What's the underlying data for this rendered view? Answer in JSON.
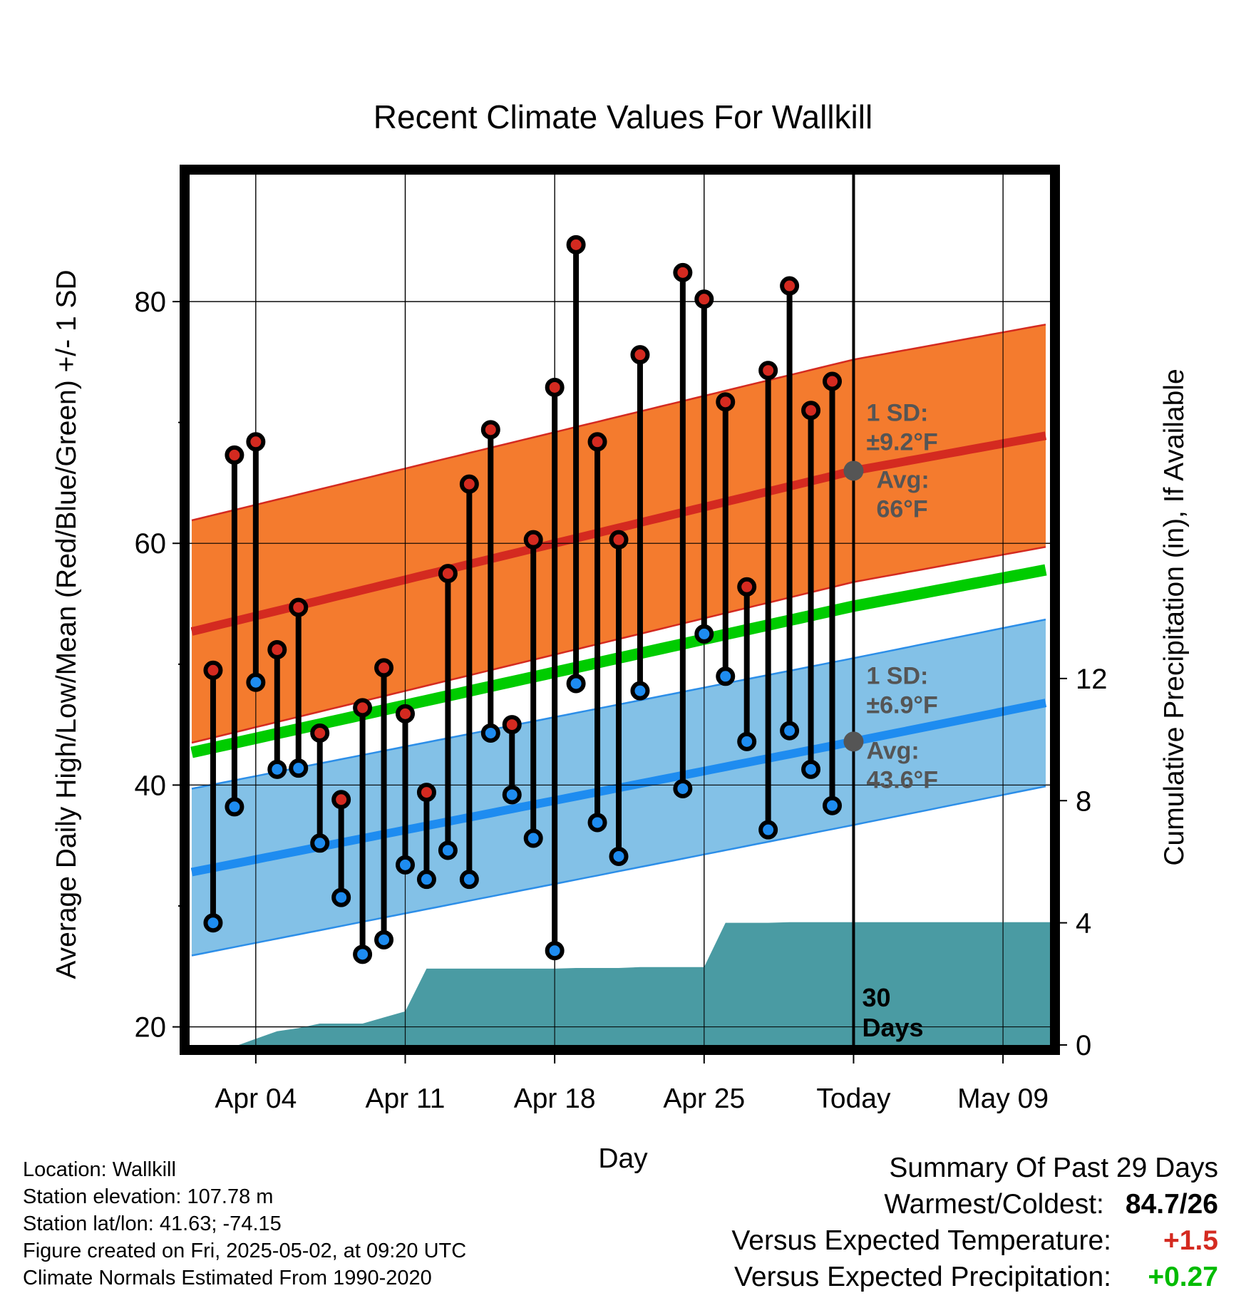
{
  "chart_data": {
    "type": "line",
    "title": "Recent Climate Values For Wallkill",
    "xlabel": "Day",
    "ylabel": "Average Daily High/Low/Mean (Red/Blue/Green) +/- 1 SD",
    "y2label": "Cumulative Precipitation (in), If Available",
    "x_tick_labels": [
      "Apr 04",
      "Apr 11",
      "Apr 18",
      "Apr 25",
      "Today",
      "May 09"
    ],
    "x_ticks_days": [
      4,
      11,
      18,
      25,
      32,
      39
    ],
    "xlim_days": [
      0.9,
      41.2
    ],
    "today_day": 32,
    "ylim": [
      18.5,
      90.5
    ],
    "y_ticks": [
      20,
      40,
      60,
      80
    ],
    "y2lim": [
      0,
      28.5
    ],
    "y2_ticks": [
      0,
      4,
      8,
      12
    ],
    "colors": {
      "high_band": "#f47b2e",
      "high_band_edge": "#d42a20",
      "high_mean": "#d42a20",
      "low_band": "#83c1e7",
      "low_band_edge": "#2c8ee8",
      "low_mean": "#1e8cf0",
      "mean": "#00cc00",
      "precip": "#4a9ba3",
      "high_dot": "#d42a20",
      "low_dot": "#1e8cf0",
      "annotation": "#555555"
    },
    "normals": {
      "days": [
        1,
        32,
        41
      ],
      "high_mean": [
        52.7,
        66.0,
        68.9
      ],
      "high_sd": 9.2,
      "low_mean": [
        32.8,
        43.6,
        46.8
      ],
      "low_sd": 6.9,
      "mean": [
        42.7,
        54.8,
        57.8
      ]
    },
    "daily": [
      {
        "day": 2,
        "high": 49.5,
        "low": 28.6
      },
      {
        "day": 3,
        "high": 67.3,
        "low": 38.2
      },
      {
        "day": 4,
        "high": 68.4,
        "low": 48.5
      },
      {
        "day": 5,
        "high": 51.2,
        "low": 41.3
      },
      {
        "day": 6,
        "high": 54.7,
        "low": 41.4
      },
      {
        "day": 7,
        "high": 44.3,
        "low": 35.2
      },
      {
        "day": 8,
        "high": 38.8,
        "low": 30.7
      },
      {
        "day": 9,
        "high": 46.4,
        "low": 26.0
      },
      {
        "day": 10,
        "high": 49.7,
        "low": 27.2
      },
      {
        "day": 11,
        "high": 45.9,
        "low": 33.4
      },
      {
        "day": 12,
        "high": 39.4,
        "low": 32.2
      },
      {
        "day": 13,
        "high": 57.5,
        "low": 34.6
      },
      {
        "day": 14,
        "high": 64.9,
        "low": 32.2
      },
      {
        "day": 15,
        "high": 69.4,
        "low": 44.3
      },
      {
        "day": 16,
        "high": 45.0,
        "low": 39.2
      },
      {
        "day": 17,
        "high": 60.3,
        "low": 35.6
      },
      {
        "day": 18,
        "high": 72.9,
        "low": 26.3
      },
      {
        "day": 19,
        "high": 84.7,
        "low": 48.4
      },
      {
        "day": 20,
        "high": 68.4,
        "low": 36.9
      },
      {
        "day": 21,
        "high": 60.3,
        "low": 34.1
      },
      {
        "day": 22,
        "high": 75.6,
        "low": 47.8
      },
      {
        "day": 24,
        "high": 82.4,
        "low": 39.7
      },
      {
        "day": 25,
        "high": 80.2,
        "low": 52.5
      },
      {
        "day": 26,
        "high": 71.7,
        "low": 49.0
      },
      {
        "day": 27,
        "high": 56.4,
        "low": 43.6
      },
      {
        "day": 28,
        "high": 74.3,
        "low": 36.3
      },
      {
        "day": 29,
        "high": 81.3,
        "low": 44.5
      },
      {
        "day": 30,
        "high": 71.0,
        "low": 41.3
      },
      {
        "day": 31,
        "high": 73.4,
        "low": 38.3
      }
    ],
    "precip_cumulative": {
      "days": [
        1,
        3.2,
        4,
        5,
        6,
        7,
        8,
        9,
        10,
        11,
        12,
        13,
        14,
        15,
        16,
        17,
        18,
        19,
        20,
        21,
        22,
        23,
        24,
        25,
        26,
        27,
        28,
        29,
        30,
        31,
        32,
        41.2
      ],
      "values": [
        0,
        0,
        0.2,
        0.45,
        0.55,
        0.7,
        0.7,
        0.7,
        0.9,
        1.1,
        2.5,
        2.5,
        2.5,
        2.5,
        2.5,
        2.5,
        2.5,
        2.52,
        2.52,
        2.52,
        2.55,
        2.55,
        2.55,
        2.55,
        4.0,
        4.0,
        4.0,
        4.02,
        4.02,
        4.02,
        4.02,
        4.02
      ]
    },
    "annotations": {
      "high_sd_line1": "1 SD:",
      "high_sd_line2": "±9.2°F",
      "high_avg_line1": "Avg:",
      "high_avg_line2": "66°F",
      "low_sd_line1": "1 SD:",
      "low_sd_line2": "±6.9°F",
      "low_avg_line1": "Avg:",
      "low_avg_line2": "43.6°F",
      "window_line1": "30",
      "window_line2": "Days"
    }
  },
  "station_info": {
    "location": "Location: Wallkill",
    "elevation": "Station elevation: 107.78 m",
    "latlon": "Station lat/lon: 41.63; -74.15",
    "created": "Figure created on Fri, 2025-05-02, at 09:20 UTC",
    "normals": "Climate Normals Estimated From 1990-2020"
  },
  "summary": {
    "title": "Summary Of Past 29 Days",
    "warmest_label": "Warmest/Coldest:",
    "warmest_value": "84.7/26",
    "temp_label": "Versus Expected Temperature:",
    "temp_value": "+1.5",
    "temp_color": "#d42a20",
    "precip_label": "Versus Expected Precipitation:",
    "precip_value": "+0.27",
    "precip_color": "#00bb00"
  }
}
